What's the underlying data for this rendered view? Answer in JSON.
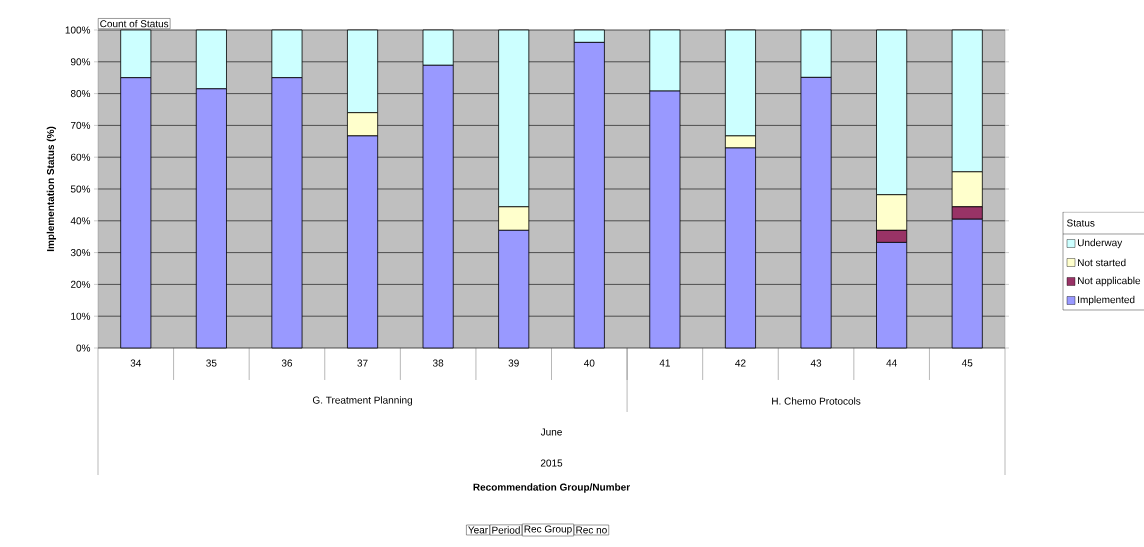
{
  "chart_data": {
    "type": "bar",
    "stacked": true,
    "ylabel": "Implementation Status (%)",
    "legend_title": "Status",
    "categories": [
      "34",
      "35",
      "36",
      "37",
      "38",
      "39",
      "40",
      "41",
      "42",
      "43",
      "44",
      "45"
    ],
    "series": [
      {
        "name": "Implemented",
        "color": "#9999ff",
        "values": [
          85,
          81.5,
          85,
          66.7,
          88.9,
          37,
          96.1,
          80.8,
          62.9,
          85.1,
          33.2,
          40.5
        ]
      },
      {
        "name": "Not applicable",
        "color": "#993366",
        "values": [
          null,
          null,
          null,
          null,
          null,
          null,
          null,
          null,
          null,
          null,
          3.8,
          3.9
        ]
      },
      {
        "name": "Not started",
        "color": "#ffffcc",
        "values": [
          null,
          null,
          null,
          7.3,
          null,
          7.4,
          null,
          null,
          3.8,
          null,
          11.2,
          11
        ]
      },
      {
        "name": "Underway",
        "color": "#ccffff",
        "values": [
          15,
          18.5,
          15,
          26,
          11.1,
          55.6,
          3.9,
          19.2,
          33.3,
          14.9,
          51.8,
          44.6
        ]
      }
    ],
    "ylim": [
      0,
      100
    ],
    "yticks": [
      {
        "value": 0,
        "label": "0%"
      },
      {
        "value": 10,
        "label": "10%"
      },
      {
        "value": 20,
        "label": "20%"
      },
      {
        "value": 30,
        "label": "30%"
      },
      {
        "value": 40,
        "label": "40%"
      },
      {
        "value": 50,
        "label": "50%"
      },
      {
        "value": 60,
        "label": "60%"
      },
      {
        "value": 70,
        "label": "70%"
      },
      {
        "value": 80,
        "label": "80%"
      },
      {
        "value": 90,
        "label": "90%"
      },
      {
        "value": 100,
        "label": "100%"
      }
    ],
    "grid": "y",
    "legend": "right",
    "annotations": [
      "G. Treatment Planning",
      "H. Chemo Protocols",
      "June",
      "2015",
      "Recommendation Group/Number",
      "Count of Status",
      "Year",
      "Period",
      "Rec Group",
      "Rec no"
    ]
  }
}
